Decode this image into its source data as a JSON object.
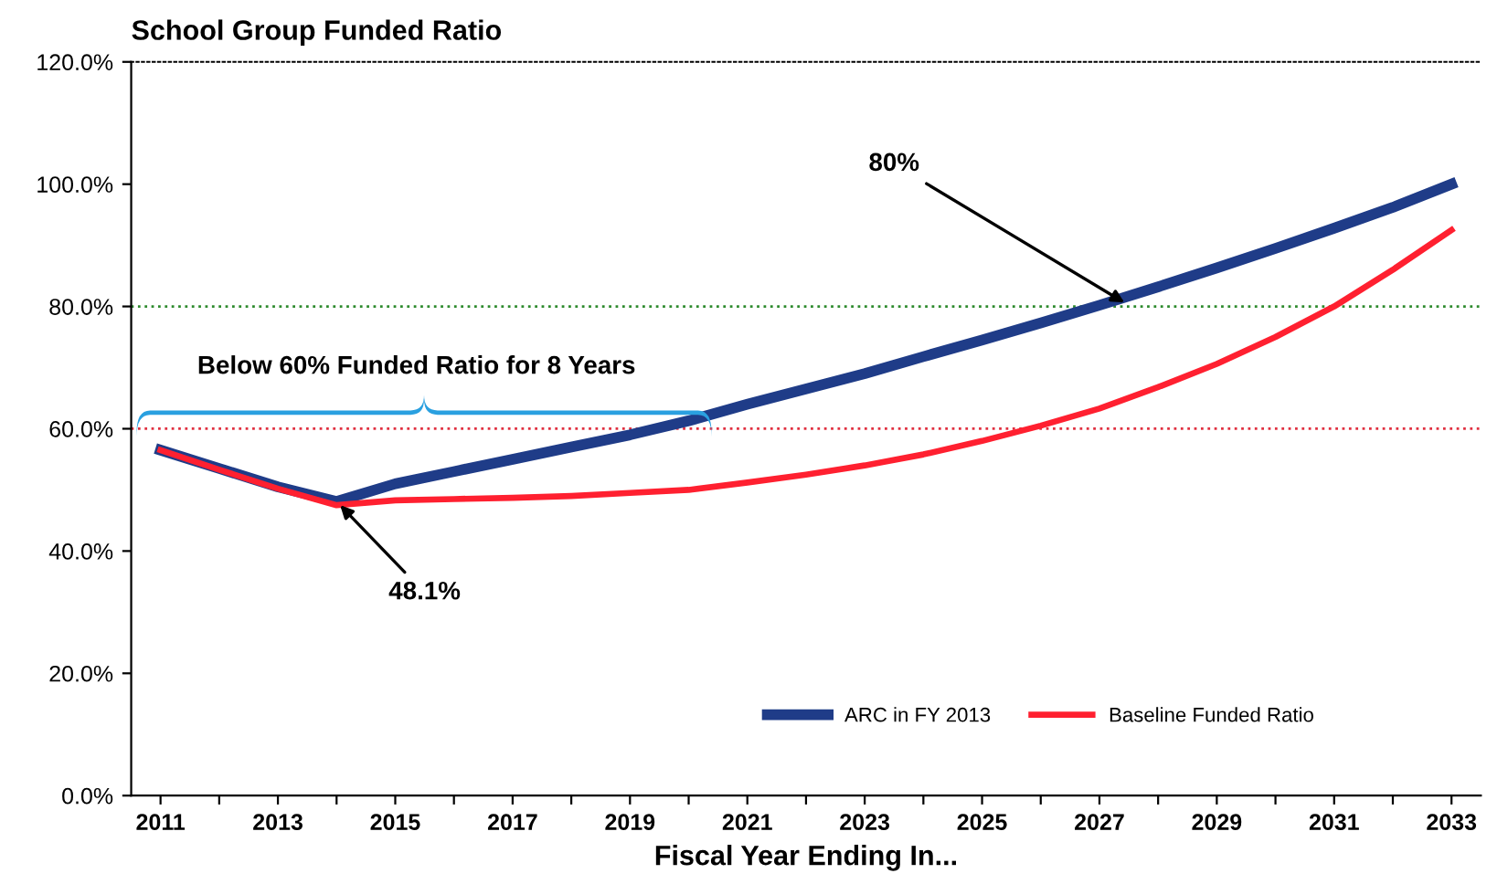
{
  "chart_data": {
    "type": "line",
    "title": "School Group Funded Ratio",
    "xlabel": "Fiscal Year Ending In...",
    "x": [
      2011,
      2012,
      2013,
      2014,
      2015,
      2016,
      2017,
      2018,
      2019,
      2020,
      2021,
      2022,
      2023,
      2024,
      2025,
      2026,
      2027,
      2028,
      2029,
      2030,
      2031,
      2032,
      2033
    ],
    "series": [
      {
        "name": "ARC in FY 2013",
        "color": "#1f3c88",
        "values": [
          56.5,
          53.5,
          50.5,
          48.1,
          51,
          53,
          55,
          57,
          59,
          61.3,
          64,
          66.5,
          69,
          71.8,
          74.5,
          77.3,
          80.2,
          83.2,
          86.3,
          89.5,
          92.8,
          96.2,
          100
        ]
      },
      {
        "name": "Baseline Funded Ratio",
        "color": "#ff2030",
        "values": [
          56.5,
          53.3,
          50.2,
          47.5,
          48.3,
          48.5,
          48.7,
          49,
          49.5,
          50,
          51.2,
          52.5,
          54,
          55.8,
          58,
          60.5,
          63.3,
          66.8,
          70.6,
          75,
          80,
          86,
          92.5
        ]
      }
    ],
    "xlim": [
      2010.5,
      2033.5
    ],
    "xticks": [
      2011,
      {
        "value": 2012,
        "label": null
      },
      2013,
      {
        "value": 2014,
        "label": null
      },
      2015,
      {
        "value": 2016,
        "label": null
      },
      2017,
      {
        "value": 2018,
        "label": null
      },
      2019,
      {
        "value": 2020,
        "label": null
      },
      2021,
      {
        "value": 2022,
        "label": null
      },
      2023,
      {
        "value": 2024,
        "label": null
      },
      2025,
      {
        "value": 2026,
        "label": null
      },
      2027,
      {
        "value": 2028,
        "label": null
      },
      2029,
      {
        "value": 2030,
        "label": null
      },
      2031,
      {
        "value": 2032,
        "label": null
      },
      2033
    ],
    "ylim": [
      0,
      120
    ],
    "yticks": [
      {
        "value": 0,
        "label": "0.0%"
      },
      {
        "value": 20,
        "label": "20.0%"
      },
      {
        "value": 40,
        "label": "40.0%"
      },
      {
        "value": 60,
        "label": "60.0%"
      },
      {
        "value": 80,
        "label": "80.0%"
      },
      {
        "value": 100,
        "label": "100.0%"
      },
      {
        "value": 120,
        "label": "120.0%"
      }
    ],
    "ref_lines": [
      {
        "axis": "y",
        "value": 80,
        "color": "#2e8b2e",
        "line_style": "dotted"
      },
      {
        "axis": "y",
        "value": 60,
        "color": "#e03040",
        "line_style": "dotted"
      }
    ],
    "annotations": [
      {
        "text": "80%",
        "x": 2027.5,
        "y": 80.2
      },
      {
        "text": "48.1%",
        "x": 2014,
        "y": 48.1
      },
      "Below 60% Funded Ratio for 8 Years"
    ],
    "legend": "bottom right",
    "grid": false,
    "marker": "none",
    "line_style": "solid"
  }
}
